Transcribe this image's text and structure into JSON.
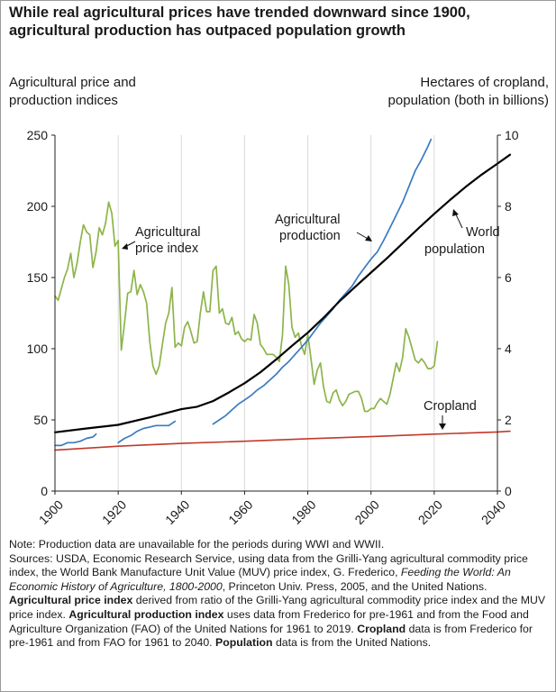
{
  "title": "While real agricultural prices have trended downward since 1900, agricultural production has outpaced population growth",
  "left_axis_title": [
    "Agricultural price and",
    "production indices"
  ],
  "right_axis_title": [
    "Hectares of cropland,",
    "population (both in billions)"
  ],
  "colors": {
    "price": "#8db44a",
    "production": "#3a7bbf",
    "population": "#000000",
    "cropland": "#c0392b",
    "grid": "#d9d9d9"
  },
  "chart_data": {
    "type": "line",
    "x_ticks": [
      "1900",
      "1920",
      "1940",
      "1960",
      "1980",
      "2000",
      "2020",
      "2040"
    ],
    "xlim": [
      1900,
      2040
    ],
    "y_left_ticks": [
      "0",
      "50",
      "100",
      "150",
      "200",
      "250"
    ],
    "ylim_left": [
      0,
      250
    ],
    "y_right_ticks": [
      "0",
      "2",
      "4",
      "6",
      "8",
      "10"
    ],
    "ylim_right": [
      0,
      10
    ],
    "grid": "vertical",
    "annotations": {
      "price": [
        "Agricultural",
        "price index"
      ],
      "production": [
        "Agricultural",
        "production"
      ],
      "population": [
        "World",
        "population"
      ],
      "cropland": [
        "Cropland"
      ]
    },
    "series": [
      {
        "name": "Agricultural price index",
        "axis": "left",
        "segments": [
          [
            [
              1900,
              137
            ],
            [
              1901,
              134
            ],
            [
              1902,
              142
            ],
            [
              1903,
              150
            ],
            [
              1904,
              156
            ],
            [
              1905,
              167
            ],
            [
              1906,
              150
            ],
            [
              1907,
              160
            ],
            [
              1908,
              175
            ],
            [
              1909,
              187
            ],
            [
              1910,
              182
            ],
            [
              1911,
              180
            ],
            [
              1912,
              157
            ],
            [
              1913,
              168
            ],
            [
              1914,
              185
            ],
            [
              1915,
              180
            ],
            [
              1916,
              188
            ],
            [
              1917,
              203
            ],
            [
              1918,
              195
            ],
            [
              1919,
              172
            ],
            [
              1920,
              176
            ],
            [
              1921,
              99
            ],
            [
              1922,
              118
            ],
            [
              1923,
              139
            ],
            [
              1924,
              140
            ],
            [
              1925,
              155
            ],
            [
              1926,
              138
            ],
            [
              1927,
              145
            ],
            [
              1928,
              140
            ],
            [
              1929,
              132
            ],
            [
              1930,
              105
            ],
            [
              1931,
              88
            ],
            [
              1932,
              82
            ],
            [
              1933,
              88
            ],
            [
              1934,
              103
            ],
            [
              1935,
              118
            ],
            [
              1936,
              125
            ],
            [
              1937,
              143
            ],
            [
              1938,
              101
            ],
            [
              1939,
              104
            ],
            [
              1940,
              102
            ],
            [
              1941,
              115
            ],
            [
              1942,
              119
            ],
            [
              1943,
              112
            ],
            [
              1944,
              104
            ],
            [
              1945,
              105
            ],
            [
              1946,
              125
            ],
            [
              1947,
              140
            ],
            [
              1948,
              126
            ],
            [
              1949,
              126
            ],
            [
              1950,
              155
            ],
            [
              1951,
              158
            ],
            [
              1952,
              125
            ],
            [
              1953,
              128
            ],
            [
              1954,
              118
            ],
            [
              1955,
              117
            ],
            [
              1956,
              122
            ],
            [
              1957,
              110
            ],
            [
              1958,
              112
            ],
            [
              1959,
              107
            ],
            [
              1960,
              105
            ],
            [
              1961,
              107
            ],
            [
              1962,
              106
            ],
            [
              1963,
              124
            ],
            [
              1964,
              118
            ],
            [
              1965,
              103
            ],
            [
              1966,
              100
            ],
            [
              1967,
              96
            ],
            [
              1968,
              96
            ],
            [
              1969,
              96
            ],
            [
              1970,
              94
            ],
            [
              1971,
              91
            ],
            [
              1972,
              110
            ],
            [
              1973,
              158
            ],
            [
              1974,
              145
            ],
            [
              1975,
              115
            ],
            [
              1976,
              108
            ],
            [
              1977,
              111
            ],
            [
              1978,
              102
            ],
            [
              1979,
              96
            ],
            [
              1980,
              110
            ],
            [
              1981,
              93
            ],
            [
              1982,
              75
            ],
            [
              1983,
              85
            ],
            [
              1984,
              90
            ],
            [
              1985,
              73
            ],
            [
              1986,
              63
            ],
            [
              1987,
              62
            ],
            [
              1988,
              69
            ],
            [
              1989,
              71
            ],
            [
              1990,
              64
            ],
            [
              1991,
              60
            ],
            [
              1992,
              63
            ],
            [
              1993,
              68
            ],
            [
              1994,
              69
            ],
            [
              1995,
              70
            ],
            [
              1996,
              70
            ],
            [
              1997,
              65
            ],
            [
              1998,
              56
            ],
            [
              1999,
              56
            ],
            [
              2000,
              58
            ],
            [
              2001,
              58
            ],
            [
              2002,
              62
            ],
            [
              2003,
              65
            ],
            [
              2004,
              63
            ],
            [
              2005,
              61
            ],
            [
              2006,
              68
            ],
            [
              2007,
              79
            ],
            [
              2008,
              90
            ],
            [
              2009,
              84
            ],
            [
              2010,
              94
            ],
            [
              2011,
              114
            ],
            [
              2012,
              108
            ],
            [
              2013,
              100
            ],
            [
              2014,
              92
            ],
            [
              2015,
              90
            ],
            [
              2016,
              93
            ],
            [
              2017,
              90
            ],
            [
              2018,
              86
            ],
            [
              2019,
              86
            ],
            [
              2020,
              88
            ],
            [
              2021,
              105
            ]
          ]
        ]
      },
      {
        "name": "Agricultural production index",
        "axis": "left",
        "segments": [
          [
            [
              1900,
              32
            ],
            [
              1902,
              32
            ],
            [
              1904,
              34
            ],
            [
              1906,
              34
            ],
            [
              1908,
              35
            ],
            [
              1910,
              37
            ],
            [
              1912,
              38
            ],
            [
              1913,
              40
            ]
          ],
          [
            [
              1920,
              34
            ],
            [
              1922,
              37
            ],
            [
              1924,
              39
            ],
            [
              1926,
              42
            ],
            [
              1928,
              44
            ],
            [
              1930,
              45
            ],
            [
              1932,
              46
            ],
            [
              1934,
              46
            ],
            [
              1936,
              46
            ],
            [
              1938,
              49
            ]
          ],
          [
            [
              1950,
              47
            ],
            [
              1952,
              50
            ],
            [
              1954,
              53
            ],
            [
              1956,
              57
            ],
            [
              1958,
              61
            ],
            [
              1960,
              64
            ],
            [
              1962,
              67
            ],
            [
              1964,
              71
            ],
            [
              1966,
              74
            ],
            [
              1968,
              78
            ],
            [
              1970,
              82
            ],
            [
              1972,
              87
            ],
            [
              1974,
              91
            ],
            [
              1976,
              96
            ],
            [
              1978,
              101
            ],
            [
              1980,
              106
            ],
            [
              1982,
              112
            ],
            [
              1984,
              118
            ],
            [
              1986,
              123
            ],
            [
              1988,
              128
            ],
            [
              1990,
              134
            ],
            [
              1992,
              139
            ],
            [
              1994,
              144
            ],
            [
              1996,
              151
            ],
            [
              1998,
              157
            ],
            [
              2000,
              163
            ],
            [
              2002,
              168
            ],
            [
              2004,
              176
            ],
            [
              2006,
              185
            ],
            [
              2008,
              194
            ],
            [
              2010,
              203
            ],
            [
              2012,
              214
            ],
            [
              2014,
              225
            ],
            [
              2016,
              233
            ],
            [
              2018,
              242
            ],
            [
              2019,
              247
            ]
          ]
        ]
      },
      {
        "name": "World population",
        "axis": "right",
        "segments": [
          [
            [
              1900,
              1.65
            ],
            [
              1910,
              1.76
            ],
            [
              1920,
              1.86
            ],
            [
              1930,
              2.07
            ],
            [
              1940,
              2.3
            ],
            [
              1945,
              2.37
            ],
            [
              1950,
              2.53
            ],
            [
              1955,
              2.77
            ],
            [
              1960,
              3.03
            ],
            [
              1965,
              3.34
            ],
            [
              1970,
              3.7
            ],
            [
              1975,
              4.08
            ],
            [
              1980,
              4.45
            ],
            [
              1985,
              4.87
            ],
            [
              1990,
              5.33
            ],
            [
              1995,
              5.74
            ],
            [
              2000,
              6.14
            ],
            [
              2005,
              6.54
            ],
            [
              2010,
              6.96
            ],
            [
              2015,
              7.38
            ],
            [
              2020,
              7.79
            ],
            [
              2025,
              8.18
            ],
            [
              2030,
              8.55
            ],
            [
              2035,
              8.89
            ],
            [
              2040,
              9.2
            ],
            [
              2044,
              9.45
            ]
          ]
        ]
      },
      {
        "name": "Cropland",
        "axis": "right",
        "segments": [
          [
            [
              1900,
              1.15
            ],
            [
              1920,
              1.26
            ],
            [
              1940,
              1.34
            ],
            [
              1960,
              1.4
            ],
            [
              1980,
              1.47
            ],
            [
              2000,
              1.53
            ],
            [
              2020,
              1.6
            ],
            [
              2040,
              1.66
            ],
            [
              2044,
              1.68
            ]
          ]
        ]
      }
    ]
  },
  "notes": {
    "note": "Note: Production data are unavailable for the periods during WWI and WWII.",
    "s1": "Sources: USDA, Economic Research Service, using data from the Grilli-Yang agricultural commodity price index, the World Bank Manufacture Unit Value (MUV) price index, G. Frederico, ",
    "s1_italic": "Feeding the World: An Economic History of Agriculture, 1800-2000",
    "s2": ", Princeton Univ. Press, 2005, and the United Nations. ",
    "b1": "Agricultural price index",
    "s3": " derived from ratio of the Grilli-Yang agricultural commodity price index and the MUV price index. ",
    "b2": "Agricultural production index",
    "s4": " uses data from Frederico for pre-1961 and from the Food and Agriculture Organization (FAO) of the United Nations for 1961 to 2019. ",
    "b3": "Cropland",
    "s5": " data is from Frederico for pre-1961 and from FAO for 1961 to 2040. ",
    "b4": "Population",
    "s6": " data is from the United Nations."
  }
}
